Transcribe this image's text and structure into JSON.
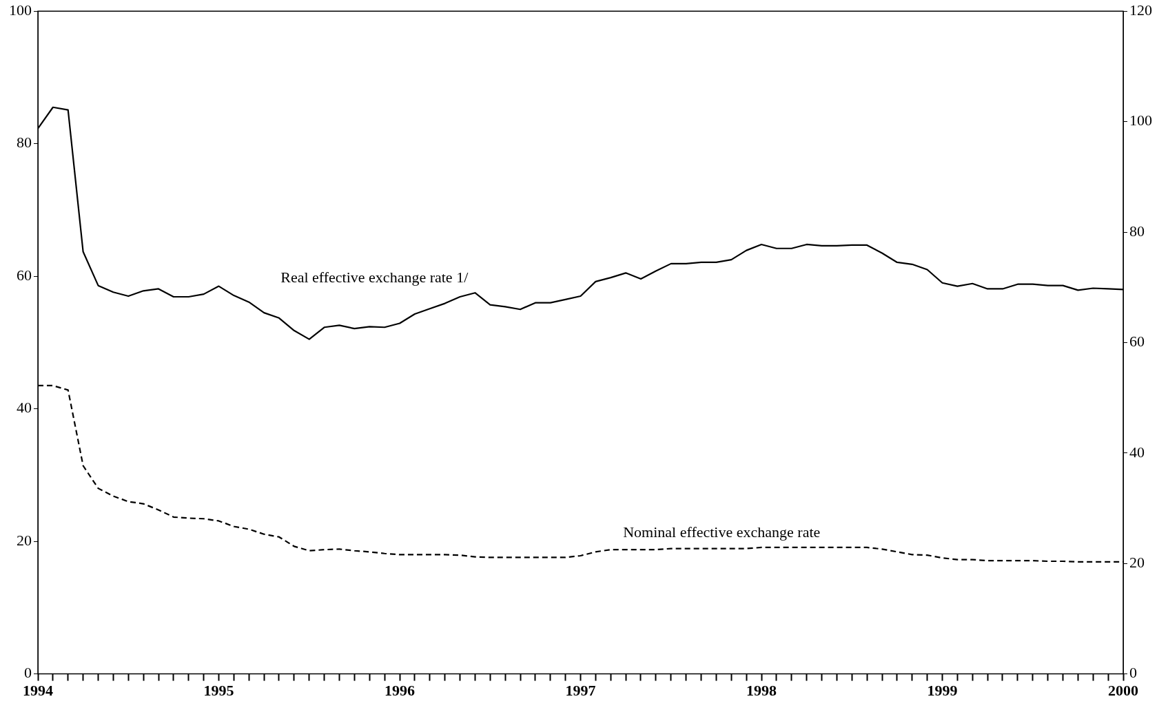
{
  "chart_data": {
    "type": "line",
    "x": [
      "1994-01",
      "1994-02",
      "1994-03",
      "1994-04",
      "1994-05",
      "1994-06",
      "1994-07",
      "1994-08",
      "1994-09",
      "1994-10",
      "1994-11",
      "1994-12",
      "1995-01",
      "1995-02",
      "1995-03",
      "1995-04",
      "1995-05",
      "1995-06",
      "1995-07",
      "1995-08",
      "1995-09",
      "1995-10",
      "1995-11",
      "1995-12",
      "1996-01",
      "1996-02",
      "1996-03",
      "1996-04",
      "1996-05",
      "1996-06",
      "1996-07",
      "1996-08",
      "1996-09",
      "1996-10",
      "1996-11",
      "1996-12",
      "1997-01",
      "1997-02",
      "1997-03",
      "1997-04",
      "1997-05",
      "1997-06",
      "1997-07",
      "1997-08",
      "1997-09",
      "1997-10",
      "1997-11",
      "1997-12",
      "1998-01",
      "1998-02",
      "1998-03",
      "1998-04",
      "1998-05",
      "1998-06",
      "1998-07",
      "1998-08",
      "1998-09",
      "1998-10",
      "1998-11",
      "1998-12",
      "1999-01",
      "1999-02",
      "1999-03",
      "1999-04",
      "1999-05",
      "1999-06",
      "1999-07",
      "1999-08",
      "1999-09",
      "1999-10",
      "1999-11",
      "1999-12",
      "2000-01"
    ],
    "series": [
      {
        "name": "Real effective exchange rate 1/",
        "color": "#000000",
        "line_style": "solid",
        "values": [
          82.3,
          85.5,
          85.1,
          63.7,
          58.6,
          57.6,
          57.0,
          57.8,
          58.1,
          56.9,
          56.9,
          57.3,
          58.5,
          57.1,
          56.1,
          54.5,
          53.7,
          51.8,
          50.5,
          52.3,
          52.6,
          52.1,
          52.4,
          52.3,
          52.9,
          54.3,
          55.1,
          55.9,
          56.9,
          57.5,
          55.7,
          55.4,
          55.0,
          56.0,
          56.0,
          56.5,
          57.0,
          59.2,
          59.8,
          60.5,
          59.6,
          60.8,
          61.9,
          61.9,
          62.1,
          62.1,
          62.5,
          63.9,
          64.8,
          64.2,
          64.2,
          64.8,
          64.6,
          64.6,
          64.7,
          64.7,
          63.5,
          62.1,
          61.8,
          61.0,
          59.0,
          58.5,
          58.9,
          58.1,
          58.1,
          58.8,
          58.8,
          58.6,
          58.6,
          57.9,
          58.2,
          58.1,
          58.0
        ]
      },
      {
        "name": "Nominal effective exchange rate",
        "color": "#000000",
        "line_style": "dashed",
        "axis": "y2",
        "values": [
          52.2,
          52.2,
          51.4,
          37.7,
          33.6,
          32.2,
          31.2,
          30.8,
          29.7,
          28.4,
          28.2,
          28.1,
          27.7,
          26.7,
          26.2,
          25.3,
          24.8,
          23.1,
          22.3,
          22.5,
          22.6,
          22.3,
          22.1,
          21.8,
          21.6,
          21.6,
          21.6,
          21.6,
          21.5,
          21.2,
          21.1,
          21.1,
          21.1,
          21.1,
          21.1,
          21.1,
          21.4,
          22.1,
          22.5,
          22.5,
          22.5,
          22.5,
          22.7,
          22.7,
          22.7,
          22.7,
          22.7,
          22.7,
          22.9,
          22.9,
          22.9,
          22.9,
          22.9,
          22.9,
          22.9,
          22.9,
          22.6,
          22.1,
          21.6,
          21.5,
          21.0,
          20.7,
          20.7,
          20.5,
          20.5,
          20.5,
          20.5,
          20.4,
          20.4,
          20.3,
          20.3,
          20.3,
          20.3
        ]
      }
    ],
    "xlim": [
      "1994-01",
      "2000-01"
    ],
    "xticks": [
      "1994",
      {
        "value": "1994-02",
        "label": null
      },
      {
        "value": "1994-03",
        "label": null
      },
      {
        "value": "1994-04",
        "label": null
      },
      {
        "value": "1994-05",
        "label": null
      },
      {
        "value": "1994-06",
        "label": null
      },
      {
        "value": "1994-07",
        "label": null
      },
      {
        "value": "1994-08",
        "label": null
      },
      {
        "value": "1994-09",
        "label": null
      },
      {
        "value": "1994-10",
        "label": null
      },
      {
        "value": "1994-11",
        "label": null
      },
      {
        "value": "1994-12",
        "label": null
      },
      "1995",
      {
        "value": "1995-02",
        "label": null
      },
      {
        "value": "1995-03",
        "label": null
      },
      {
        "value": "1995-04",
        "label": null
      },
      {
        "value": "1995-05",
        "label": null
      },
      {
        "value": "1995-06",
        "label": null
      },
      {
        "value": "1995-07",
        "label": null
      },
      {
        "value": "1995-08",
        "label": null
      },
      {
        "value": "1995-09",
        "label": null
      },
      {
        "value": "1995-10",
        "label": null
      },
      {
        "value": "1995-11",
        "label": null
      },
      {
        "value": "1995-12",
        "label": null
      },
      "1996",
      {
        "value": "1996-02",
        "label": null
      },
      {
        "value": "1996-03",
        "label": null
      },
      {
        "value": "1996-04",
        "label": null
      },
      {
        "value": "1996-05",
        "label": null
      },
      {
        "value": "1996-06",
        "label": null
      },
      {
        "value": "1996-07",
        "label": null
      },
      {
        "value": "1996-08",
        "label": null
      },
      {
        "value": "1996-09",
        "label": null
      },
      {
        "value": "1996-10",
        "label": null
      },
      {
        "value": "1996-11",
        "label": null
      },
      {
        "value": "1996-12",
        "label": null
      },
      "1997",
      {
        "value": "1997-02",
        "label": null
      },
      {
        "value": "1997-03",
        "label": null
      },
      {
        "value": "1997-04",
        "label": null
      },
      {
        "value": "1997-05",
        "label": null
      },
      {
        "value": "1997-06",
        "label": null
      },
      {
        "value": "1997-07",
        "label": null
      },
      {
        "value": "1997-08",
        "label": null
      },
      {
        "value": "1997-09",
        "label": null
      },
      {
        "value": "1997-10",
        "label": null
      },
      {
        "value": "1997-11",
        "label": null
      },
      {
        "value": "1997-12",
        "label": null
      },
      "1998",
      {
        "value": "1998-02",
        "label": null
      },
      {
        "value": "1998-03",
        "label": null
      },
      {
        "value": "1998-04",
        "label": null
      },
      {
        "value": "1998-05",
        "label": null
      },
      {
        "value": "1998-06",
        "label": null
      },
      {
        "value": "1998-07",
        "label": null
      },
      {
        "value": "1998-08",
        "label": null
      },
      {
        "value": "1998-09",
        "label": null
      },
      {
        "value": "1998-10",
        "label": null
      },
      {
        "value": "1998-11",
        "label": null
      },
      {
        "value": "1998-12",
        "label": null
      },
      "1999",
      {
        "value": "1999-02",
        "label": null
      },
      {
        "value": "1999-03",
        "label": null
      },
      {
        "value": "1999-04",
        "label": null
      },
      {
        "value": "1999-05",
        "label": null
      },
      {
        "value": "1999-06",
        "label": null
      },
      {
        "value": "1999-07",
        "label": null
      },
      {
        "value": "1999-08",
        "label": null
      },
      {
        "value": "1999-09",
        "label": null
      },
      {
        "value": "1999-10",
        "label": null
      },
      {
        "value": "1999-11",
        "label": null
      },
      {
        "value": "1999-12",
        "label": null
      },
      "2000"
    ],
    "ylim": [
      0,
      100
    ],
    "yticks": [
      0,
      20,
      40,
      60,
      80,
      100
    ],
    "y2lim": [
      0,
      120
    ],
    "y2ticks": [
      0,
      20,
      40,
      60,
      80,
      100,
      120
    ],
    "grid": false,
    "legend": false,
    "marker": "none"
  }
}
